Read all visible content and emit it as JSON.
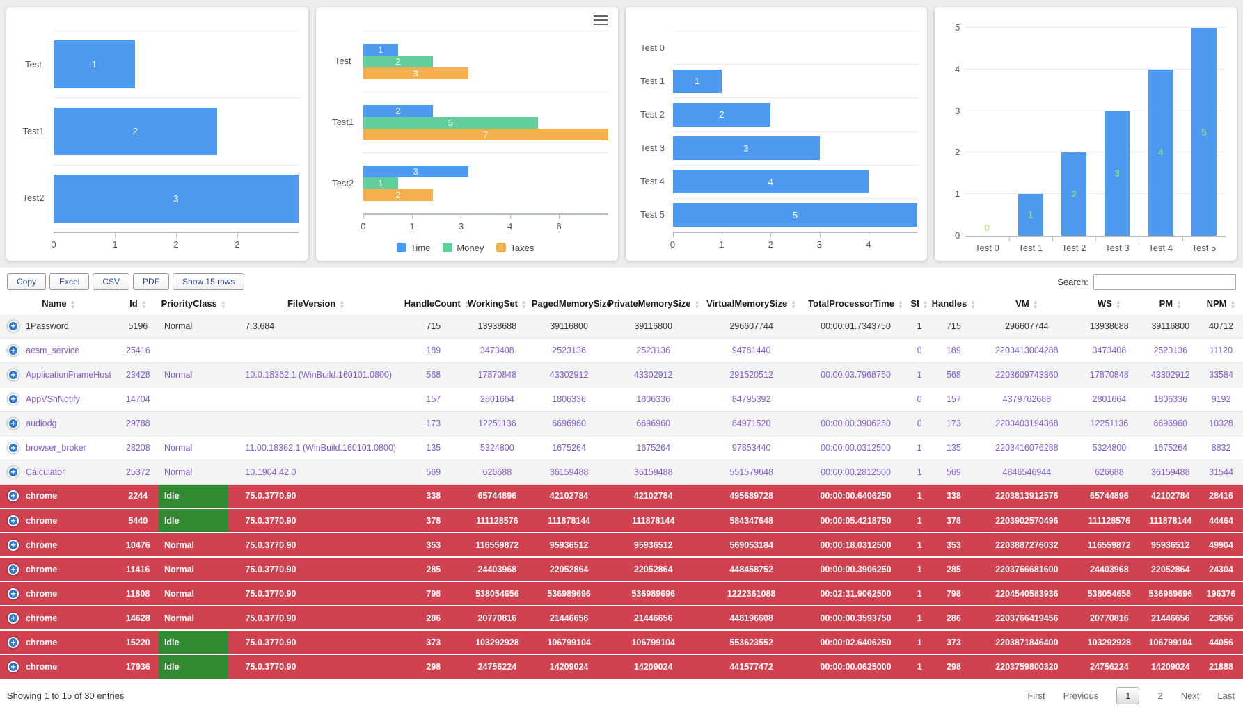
{
  "charts": [
    {
      "type": "bar-horizontal",
      "categories": [
        "Test",
        "Test1",
        "Test2"
      ],
      "values": [
        1,
        2,
        3
      ],
      "axis_max": 3,
      "x_ticks": [
        "0",
        "1",
        "2",
        "2"
      ],
      "bar_color": "#4d9af0"
    },
    {
      "type": "bar-horizontal-grouped",
      "categories": [
        "Test",
        "Test1",
        "Test2"
      ],
      "series": [
        {
          "name": "Time",
          "color": "#4d9af0",
          "values": [
            1,
            2,
            3
          ]
        },
        {
          "name": "Money",
          "color": "#60cf9b",
          "values": [
            2,
            5,
            1
          ]
        },
        {
          "name": "Taxes",
          "color": "#f5b04e",
          "values": [
            3,
            7,
            2
          ]
        }
      ],
      "axis_max": 7,
      "x_ticks": [
        "0",
        "1",
        "3",
        "4",
        "6"
      ],
      "legend_position": "bottom",
      "menu_icon": true
    },
    {
      "type": "bar-horizontal",
      "categories": [
        "Test 0",
        "Test 1",
        "Test 2",
        "Test 3",
        "Test 4",
        "Test 5"
      ],
      "values": [
        0,
        1,
        2,
        3,
        4,
        5
      ],
      "axis_max": 5,
      "x_ticks": [
        "0",
        "1",
        "2",
        "3",
        "4"
      ],
      "bar_color": "#4d9af0"
    },
    {
      "type": "bar-vertical",
      "categories": [
        "Test 0",
        "Test 1",
        "Test 2",
        "Test 3",
        "Test 4",
        "Test 5"
      ],
      "values": [
        0,
        1,
        2,
        3,
        4,
        5
      ],
      "axis_max": 5,
      "y_ticks": [
        "0",
        "1",
        "2",
        "3",
        "4",
        "5"
      ],
      "bar_color": "#4d9af0",
      "value_label_color": "#a3e95c"
    }
  ],
  "table": {
    "buttons": [
      "Copy",
      "Excel",
      "CSV",
      "PDF",
      "Show 15 rows"
    ],
    "search_label": "Search:",
    "search_value": "",
    "columns": [
      "Name",
      "Id",
      "PriorityClass",
      "FileVersion",
      "HandleCount",
      "WorkingSet",
      "PagedMemorySize",
      "PrivateMemorySize",
      "VirtualMemorySize",
      "TotalProcessorTime",
      "SI",
      "Handles",
      "VM",
      "WS",
      "PM",
      "NPM"
    ],
    "rows": [
      {
        "name": "1Password",
        "id": "5196",
        "priority": "Normal",
        "priority_highlight": false,
        "file_version": "7.3.684",
        "handle_count": "715",
        "working_set": "13938688",
        "paged_memory_size": "39116800",
        "private_memory_size": "39116800",
        "virtual_memory_size": "296607744",
        "total_processor_time": "00:00:01.7343750",
        "si": "1",
        "handles": "715",
        "vm": "296607744",
        "ws": "13938688",
        "pm": "39116800",
        "npm": "40712",
        "variant": "default"
      },
      {
        "name": "aesm_service",
        "id": "25416",
        "priority": "",
        "priority_highlight": false,
        "file_version": "",
        "handle_count": "189",
        "working_set": "3473408",
        "paged_memory_size": "2523136",
        "private_memory_size": "2523136",
        "virtual_memory_size": "94781440",
        "total_processor_time": "",
        "si": "0",
        "handles": "189",
        "vm": "2203413004288",
        "ws": "3473408",
        "pm": "2523136",
        "npm": "11120",
        "variant": "link"
      },
      {
        "name": "ApplicationFrameHost",
        "id": "23428",
        "priority": "Normal",
        "priority_highlight": false,
        "file_version": "10.0.18362.1 (WinBuild.160101.0800)",
        "handle_count": "568",
        "working_set": "17870848",
        "paged_memory_size": "43302912",
        "private_memory_size": "43302912",
        "virtual_memory_size": "291520512",
        "total_processor_time": "00:00:03.7968750",
        "si": "1",
        "handles": "568",
        "vm": "2203609743360",
        "ws": "17870848",
        "pm": "43302912",
        "npm": "33584",
        "variant": "link"
      },
      {
        "name": "AppVShNotify",
        "id": "14704",
        "priority": "",
        "priority_highlight": false,
        "file_version": "",
        "handle_count": "157",
        "working_set": "2801664",
        "paged_memory_size": "1806336",
        "private_memory_size": "1806336",
        "virtual_memory_size": "84795392",
        "total_processor_time": "",
        "si": "0",
        "handles": "157",
        "vm": "4379762688",
        "ws": "2801664",
        "pm": "1806336",
        "npm": "9192",
        "variant": "link"
      },
      {
        "name": "audiodg",
        "id": "29788",
        "priority": "",
        "priority_highlight": false,
        "file_version": "",
        "handle_count": "173",
        "working_set": "12251136",
        "paged_memory_size": "6696960",
        "private_memory_size": "6696960",
        "virtual_memory_size": "84971520",
        "total_processor_time": "00:00:00.3906250",
        "si": "0",
        "handles": "173",
        "vm": "2203403194368",
        "ws": "12251136",
        "pm": "6696960",
        "npm": "10328",
        "variant": "link"
      },
      {
        "name": "browser_broker",
        "id": "28208",
        "priority": "Normal",
        "priority_highlight": false,
        "file_version": "11.00.18362.1 (WinBuild.160101.0800)",
        "handle_count": "135",
        "working_set": "5324800",
        "paged_memory_size": "1675264",
        "private_memory_size": "1675264",
        "virtual_memory_size": "97853440",
        "total_processor_time": "00:00:00.0312500",
        "si": "1",
        "handles": "135",
        "vm": "2203416076288",
        "ws": "5324800",
        "pm": "1675264",
        "npm": "8832",
        "variant": "link"
      },
      {
        "name": "Calculator",
        "id": "25372",
        "priority": "Normal",
        "priority_highlight": false,
        "file_version": "10.1904.42.0",
        "handle_count": "569",
        "working_set": "626688",
        "paged_memory_size": "36159488",
        "private_memory_size": "36159488",
        "virtual_memory_size": "551579648",
        "total_processor_time": "00:00:00.2812500",
        "si": "1",
        "handles": "569",
        "vm": "4846546944",
        "ws": "626688",
        "pm": "36159488",
        "npm": "31544",
        "variant": "link"
      },
      {
        "name": "chrome",
        "id": "2244",
        "priority": "Idle",
        "priority_highlight": true,
        "file_version": "75.0.3770.90",
        "handle_count": "338",
        "working_set": "65744896",
        "paged_memory_size": "42102784",
        "private_memory_size": "42102784",
        "virtual_memory_size": "495689728",
        "total_processor_time": "00:00:00.6406250",
        "si": "1",
        "handles": "338",
        "vm": "2203813912576",
        "ws": "65744896",
        "pm": "42102784",
        "npm": "28416",
        "variant": "danger"
      },
      {
        "name": "chrome",
        "id": "5440",
        "priority": "Idle",
        "priority_highlight": true,
        "file_version": "75.0.3770.90",
        "handle_count": "378",
        "working_set": "111128576",
        "paged_memory_size": "111878144",
        "private_memory_size": "111878144",
        "virtual_memory_size": "584347648",
        "total_processor_time": "00:00:05.4218750",
        "si": "1",
        "handles": "378",
        "vm": "2203902570496",
        "ws": "111128576",
        "pm": "111878144",
        "npm": "44464",
        "variant": "danger"
      },
      {
        "name": "chrome",
        "id": "10476",
        "priority": "Normal",
        "priority_highlight": false,
        "file_version": "75.0.3770.90",
        "handle_count": "353",
        "working_set": "116559872",
        "paged_memory_size": "95936512",
        "private_memory_size": "95936512",
        "virtual_memory_size": "569053184",
        "total_processor_time": "00:00:18.0312500",
        "si": "1",
        "handles": "353",
        "vm": "2203887276032",
        "ws": "116559872",
        "pm": "95936512",
        "npm": "49904",
        "variant": "danger"
      },
      {
        "name": "chrome",
        "id": "11416",
        "priority": "Normal",
        "priority_highlight": false,
        "file_version": "75.0.3770.90",
        "handle_count": "285",
        "working_set": "24403968",
        "paged_memory_size": "22052864",
        "private_memory_size": "22052864",
        "virtual_memory_size": "448458752",
        "total_processor_time": "00:00:00.3906250",
        "si": "1",
        "handles": "285",
        "vm": "2203766681600",
        "ws": "24403968",
        "pm": "22052864",
        "npm": "24304",
        "variant": "danger"
      },
      {
        "name": "chrome",
        "id": "11808",
        "priority": "Normal",
        "priority_highlight": false,
        "file_version": "75.0.3770.90",
        "handle_count": "798",
        "working_set": "538054656",
        "paged_memory_size": "536989696",
        "private_memory_size": "536989696",
        "virtual_memory_size": "1222361088",
        "total_processor_time": "00:02:31.9062500",
        "si": "1",
        "handles": "798",
        "vm": "2204540583936",
        "ws": "538054656",
        "pm": "536989696",
        "npm": "196376",
        "variant": "danger"
      },
      {
        "name": "chrome",
        "id": "14628",
        "priority": "Normal",
        "priority_highlight": false,
        "file_version": "75.0.3770.90",
        "handle_count": "286",
        "working_set": "20770816",
        "paged_memory_size": "21446656",
        "private_memory_size": "21446656",
        "virtual_memory_size": "448196608",
        "total_processor_time": "00:00:00.3593750",
        "si": "1",
        "handles": "286",
        "vm": "2203766419456",
        "ws": "20770816",
        "pm": "21446656",
        "npm": "23656",
        "variant": "danger"
      },
      {
        "name": "chrome",
        "id": "15220",
        "priority": "Idle",
        "priority_highlight": true,
        "file_version": "75.0.3770.90",
        "handle_count": "373",
        "working_set": "103292928",
        "paged_memory_size": "106799104",
        "private_memory_size": "106799104",
        "virtual_memory_size": "553623552",
        "total_processor_time": "00:00:02.6406250",
        "si": "1",
        "handles": "373",
        "vm": "2203871846400",
        "ws": "103292928",
        "pm": "106799104",
        "npm": "44056",
        "variant": "danger"
      },
      {
        "name": "chrome",
        "id": "17936",
        "priority": "Idle",
        "priority_highlight": true,
        "file_version": "75.0.3770.90",
        "handle_count": "298",
        "working_set": "24756224",
        "paged_memory_size": "14209024",
        "private_memory_size": "14209024",
        "virtual_memory_size": "441577472",
        "total_processor_time": "00:00:00.0625000",
        "si": "1",
        "handles": "298",
        "vm": "2203759800320",
        "ws": "24756224",
        "pm": "14209024",
        "npm": "21888",
        "variant": "danger"
      }
    ],
    "footer": {
      "info": "Showing 1 to 15 of 30 entries",
      "pagination": [
        "First",
        "Previous",
        "1",
        "2",
        "Next",
        "Last"
      ],
      "current_page": "1"
    }
  },
  "colors": {
    "bar_blue": "#4d9af0",
    "money_green": "#60cf9b",
    "taxes_orange": "#f5b04e",
    "danger_row": "#d04250",
    "idle_cell_green": "#318a31",
    "link_text_purple": "#7b5cd6",
    "expand_button_blue": "#2e7ad1",
    "vertical_value_label": "#a3e95c"
  }
}
